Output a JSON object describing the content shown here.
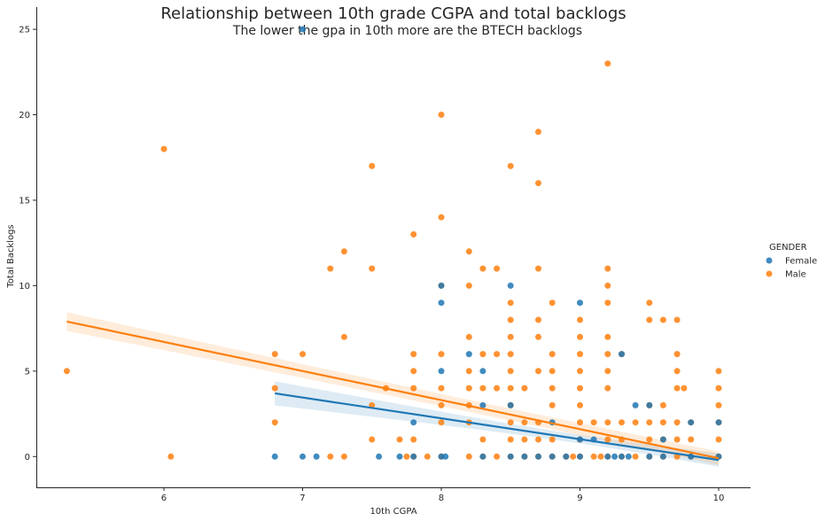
{
  "chart_data": {
    "type": "scatter",
    "title": "Relationship between 10th grade CGPA and total backlogs",
    "subtitle": "The lower the gpa in 10th more are the BTECH backlogs",
    "xlabel": "10th CGPA",
    "ylabel": "Total Backlogs",
    "xlim": [
      5.08,
      10.23
    ],
    "ylim": [
      -1.8,
      26.3
    ],
    "xticks": [
      6,
      7,
      8,
      9,
      10
    ],
    "yticks": [
      0,
      5,
      10,
      15,
      20,
      25
    ],
    "legend": {
      "title": "GENDER",
      "placement": "right"
    },
    "series": [
      {
        "name": "Female",
        "color": "#1f77b4",
        "points": [
          [
            6.8,
            0
          ],
          [
            7.0,
            0
          ],
          [
            7.0,
            25
          ],
          [
            7.1,
            0
          ],
          [
            7.55,
            0
          ],
          [
            7.7,
            0
          ],
          [
            7.8,
            0
          ],
          [
            7.8,
            2
          ],
          [
            8.0,
            9
          ],
          [
            8.0,
            10
          ],
          [
            8.0,
            5
          ],
          [
            8.0,
            0
          ],
          [
            8.03,
            0
          ],
          [
            8.2,
            6
          ],
          [
            8.3,
            5
          ],
          [
            8.3,
            3
          ],
          [
            8.3,
            0
          ],
          [
            8.5,
            10
          ],
          [
            8.5,
            3
          ],
          [
            8.5,
            0
          ],
          [
            8.6,
            0
          ],
          [
            8.7,
            0
          ],
          [
            8.8,
            2
          ],
          [
            8.8,
            0
          ],
          [
            8.9,
            0
          ],
          [
            9.0,
            9
          ],
          [
            9.0,
            1
          ],
          [
            9.0,
            0
          ],
          [
            9.1,
            1
          ],
          [
            9.2,
            0
          ],
          [
            9.25,
            0
          ],
          [
            9.3,
            6
          ],
          [
            9.3,
            0
          ],
          [
            9.35,
            0
          ],
          [
            9.4,
            3
          ],
          [
            9.5,
            3
          ],
          [
            9.5,
            0
          ],
          [
            9.6,
            1
          ],
          [
            9.6,
            0
          ],
          [
            9.8,
            2
          ],
          [
            9.8,
            0
          ],
          [
            10.0,
            2
          ],
          [
            10.0,
            0
          ]
        ],
        "regression": {
          "x_range": [
            6.8,
            10.0
          ],
          "y_start": 3.7,
          "y_end": -0.2
        }
      },
      {
        "name": "Male",
        "color": "#ff7f0e",
        "points": [
          [
            5.3,
            5
          ],
          [
            6.0,
            18
          ],
          [
            6.05,
            0
          ],
          [
            6.8,
            6
          ],
          [
            6.8,
            4
          ],
          [
            6.8,
            2
          ],
          [
            7.0,
            6
          ],
          [
            7.2,
            11
          ],
          [
            7.2,
            0
          ],
          [
            7.3,
            12
          ],
          [
            7.3,
            7
          ],
          [
            7.3,
            0
          ],
          [
            7.5,
            17
          ],
          [
            7.5,
            11
          ],
          [
            7.5,
            3
          ],
          [
            7.5,
            1
          ],
          [
            7.6,
            4
          ],
          [
            7.7,
            1
          ],
          [
            7.75,
            0
          ],
          [
            7.8,
            13
          ],
          [
            7.8,
            6
          ],
          [
            7.8,
            5
          ],
          [
            7.8,
            4
          ],
          [
            7.8,
            1
          ],
          [
            7.8,
            0
          ],
          [
            7.9,
            0
          ],
          [
            8.0,
            20
          ],
          [
            8.0,
            14
          ],
          [
            8.0,
            10
          ],
          [
            8.0,
            6
          ],
          [
            8.0,
            4
          ],
          [
            8.0,
            3
          ],
          [
            8.0,
            2
          ],
          [
            8.0,
            0
          ],
          [
            8.2,
            12
          ],
          [
            8.2,
            10
          ],
          [
            8.2,
            7
          ],
          [
            8.2,
            5
          ],
          [
            8.2,
            4
          ],
          [
            8.2,
            3
          ],
          [
            8.2,
            2
          ],
          [
            8.2,
            0
          ],
          [
            8.3,
            11
          ],
          [
            8.3,
            6
          ],
          [
            8.3,
            4
          ],
          [
            8.3,
            1
          ],
          [
            8.3,
            0
          ],
          [
            8.4,
            11
          ],
          [
            8.4,
            6
          ],
          [
            8.4,
            4
          ],
          [
            8.4,
            0
          ],
          [
            8.5,
            17
          ],
          [
            8.5,
            9
          ],
          [
            8.5,
            8
          ],
          [
            8.5,
            7
          ],
          [
            8.5,
            6
          ],
          [
            8.5,
            5
          ],
          [
            8.5,
            4
          ],
          [
            8.5,
            3
          ],
          [
            8.5,
            2
          ],
          [
            8.5,
            1
          ],
          [
            8.5,
            0
          ],
          [
            8.6,
            4
          ],
          [
            8.6,
            2
          ],
          [
            8.6,
            1
          ],
          [
            8.6,
            0
          ],
          [
            8.7,
            19
          ],
          [
            8.7,
            16
          ],
          [
            8.7,
            11
          ],
          [
            8.7,
            8
          ],
          [
            8.7,
            7
          ],
          [
            8.7,
            5
          ],
          [
            8.7,
            2
          ],
          [
            8.7,
            1
          ],
          [
            8.7,
            0
          ],
          [
            8.8,
            9
          ],
          [
            8.8,
            6
          ],
          [
            8.8,
            5
          ],
          [
            8.8,
            4
          ],
          [
            8.8,
            3
          ],
          [
            8.8,
            1
          ],
          [
            8.8,
            0
          ],
          [
            8.9,
            0
          ],
          [
            8.95,
            0
          ],
          [
            9.0,
            8
          ],
          [
            9.0,
            7
          ],
          [
            9.0,
            6
          ],
          [
            9.0,
            5
          ],
          [
            9.0,
            4
          ],
          [
            9.0,
            3
          ],
          [
            9.0,
            2
          ],
          [
            9.0,
            1
          ],
          [
            9.0,
            0
          ],
          [
            9.1,
            2
          ],
          [
            9.1,
            0
          ],
          [
            9.15,
            0
          ],
          [
            9.2,
            23
          ],
          [
            9.2,
            11
          ],
          [
            9.2,
            10
          ],
          [
            9.2,
            9
          ],
          [
            9.2,
            7
          ],
          [
            9.2,
            6
          ],
          [
            9.2,
            5
          ],
          [
            9.2,
            4
          ],
          [
            9.2,
            2
          ],
          [
            9.2,
            1
          ],
          [
            9.2,
            0
          ],
          [
            9.3,
            6
          ],
          [
            9.3,
            2
          ],
          [
            9.3,
            1
          ],
          [
            9.3,
            0
          ],
          [
            9.4,
            2
          ],
          [
            9.4,
            0
          ],
          [
            9.5,
            9
          ],
          [
            9.5,
            8
          ],
          [
            9.5,
            3
          ],
          [
            9.5,
            2
          ],
          [
            9.5,
            1
          ],
          [
            9.5,
            0
          ],
          [
            9.6,
            8
          ],
          [
            9.6,
            3
          ],
          [
            9.6,
            2
          ],
          [
            9.6,
            1
          ],
          [
            9.6,
            0
          ],
          [
            9.7,
            8
          ],
          [
            9.7,
            6
          ],
          [
            9.7,
            5
          ],
          [
            9.7,
            4
          ],
          [
            9.7,
            2
          ],
          [
            9.7,
            1
          ],
          [
            9.7,
            0
          ],
          [
            9.75,
            4
          ],
          [
            9.8,
            2
          ],
          [
            9.8,
            1
          ],
          [
            9.8,
            0
          ],
          [
            10.0,
            5
          ],
          [
            10.0,
            4
          ],
          [
            10.0,
            3
          ],
          [
            10.0,
            2
          ],
          [
            10.0,
            1
          ],
          [
            10.0,
            0
          ]
        ],
        "regression": {
          "x_range": [
            5.3,
            10.0
          ],
          "y_start": 7.9,
          "y_end": -0.1
        }
      }
    ]
  }
}
